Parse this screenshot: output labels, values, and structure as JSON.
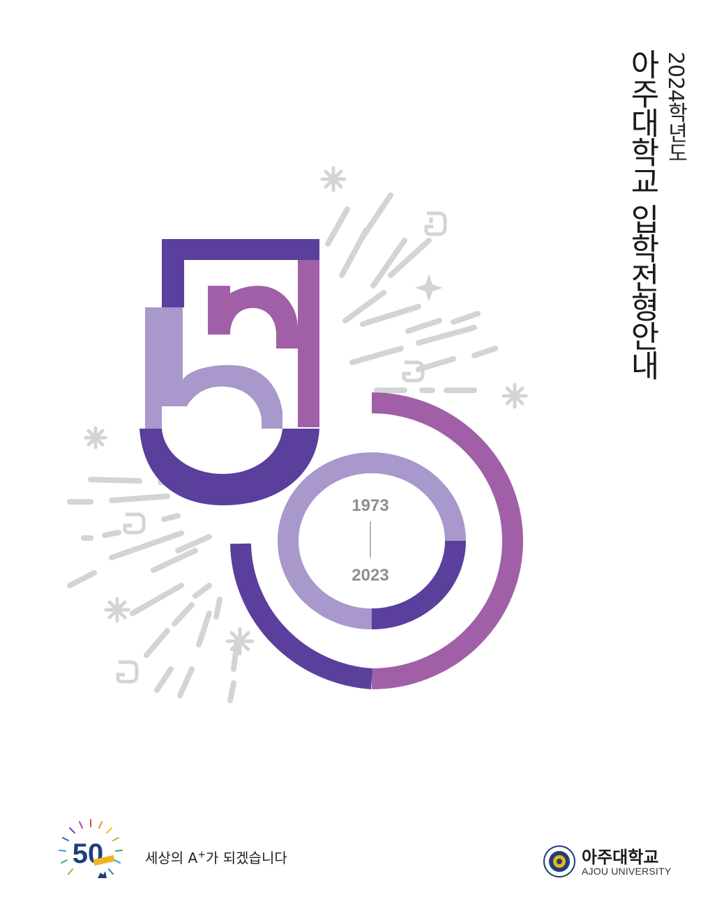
{
  "cover": {
    "year_title": "2024학년도",
    "main_title": "아주대학교 입학전형안내",
    "anniversary_number": "50",
    "year_start": "1973",
    "year_end": "2023"
  },
  "footer": {
    "slogan_pre": "세상의 A",
    "slogan_sup": "+",
    "slogan_post": "가 되겠습니다",
    "logo_number": "50",
    "univ_name_kr": "아주대학교",
    "univ_name_en": "AJOU UNIVERSITY"
  },
  "colors": {
    "dark_purple": "#5a3f9c",
    "mid_purple": "#a15fa8",
    "light_purple": "#a898cb",
    "decor_gray": "#d4d4d4"
  }
}
